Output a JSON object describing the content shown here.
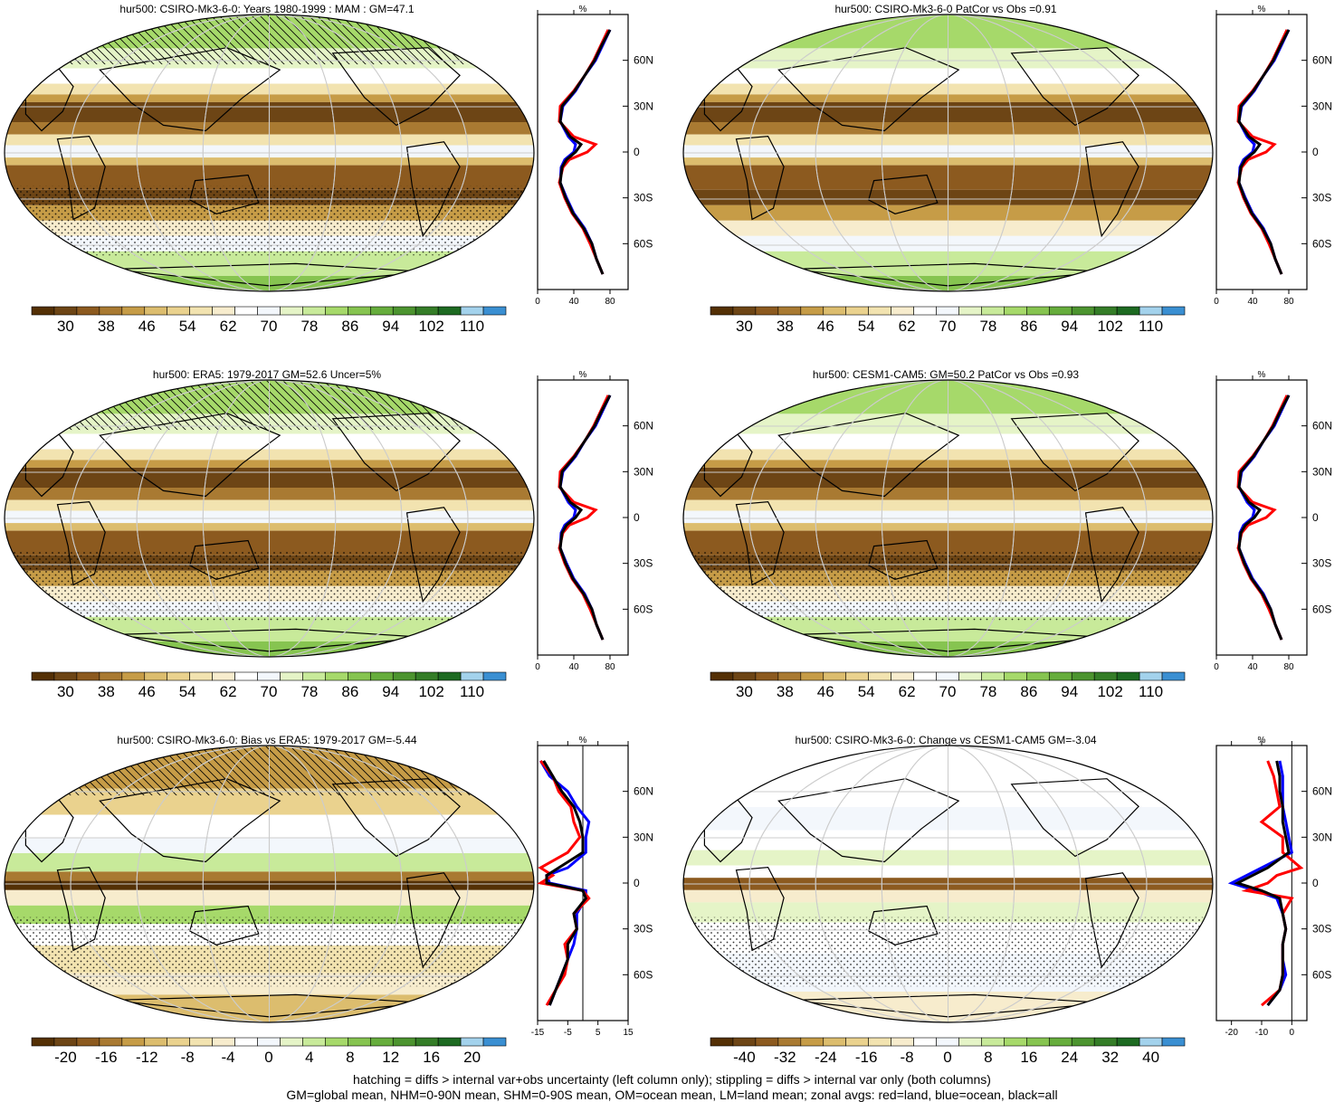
{
  "panels": [
    {
      "title": "hur500: CSIRO-Mk3-6-0: Years 1980-1999 : MAM : GM=47.1",
      "scheme": "abs",
      "hatch": true,
      "stipple": true,
      "profile": {
        "xticks": [
          "0",
          "40",
          "80"
        ],
        "xmin": 0,
        "xmax": 100,
        "unit": "%",
        "zero_line": false
      }
    },
    {
      "title": "hur500: CSIRO-Mk3-6-0 PatCor vs Obs =0.91",
      "scheme": "abs",
      "hatch": false,
      "stipple": false,
      "profile": {
        "xticks": [
          "0",
          "40",
          "80"
        ],
        "xmin": 0,
        "xmax": 100,
        "unit": "%",
        "zero_line": false
      }
    },
    {
      "title": "hur500: ERA5: 1979-2017 GM=52.6 Uncer=5%",
      "scheme": "abs",
      "hatch": true,
      "stipple": true,
      "profile": {
        "xticks": [
          "0",
          "40",
          "80"
        ],
        "xmin": 0,
        "xmax": 100,
        "unit": "%",
        "zero_line": false
      }
    },
    {
      "title": "hur500: CESM1-CAM5: GM=50.2 PatCor vs Obs =0.93",
      "scheme": "abs",
      "hatch": false,
      "stipple": true,
      "profile": {
        "xticks": [
          "0",
          "40",
          "80"
        ],
        "xmin": 0,
        "xmax": 100,
        "unit": "%",
        "zero_line": false
      }
    },
    {
      "title": "hur500: CSIRO-Mk3-6-0: Bias vs ERA5: 1979-2017 GM=-5.44",
      "scheme": "bias",
      "hatch": true,
      "stipple": true,
      "profile": {
        "xticks": [
          "-15",
          "-5",
          "5",
          "15"
        ],
        "xmin": -15,
        "xmax": 15,
        "unit": "%",
        "zero_line": true
      }
    },
    {
      "title": "hur500: CSIRO-Mk3-6-0: Change vs CESM1-CAM5 GM=-3.04",
      "scheme": "change",
      "hatch": false,
      "stipple": true,
      "profile": {
        "xticks": [
          "-20",
          "-10",
          "0"
        ],
        "xmin": -25,
        "xmax": 5,
        "unit": "%",
        "zero_line": true
      }
    }
  ],
  "lat_labels": [
    "60N",
    "30N",
    "0",
    "30S",
    "60S"
  ],
  "colorbars": {
    "abs": {
      "labels": [
        "30",
        "38",
        "46",
        "54",
        "62",
        "70",
        "78",
        "86",
        "94",
        "102",
        "110"
      ],
      "colors": [
        "#543005",
        "#6d4515",
        "#8c5a1f",
        "#a97a32",
        "#c69c47",
        "#dcbd6e",
        "#ead28e",
        "#f2e3b0",
        "#f7eccd",
        "#ffffff",
        "#f3f7fc",
        "#e5f4c7",
        "#c8ea9a",
        "#a6d96a",
        "#86c450",
        "#66ad3c",
        "#4c942f",
        "#347d27",
        "#1d6a21",
        "#a3d2ec",
        "#3a8fd2"
      ]
    },
    "bias": {
      "labels": [
        "-20",
        "-16",
        "-12",
        "-8",
        "-4",
        "0",
        "4",
        "8",
        "12",
        "16",
        "20"
      ],
      "colors": [
        "#543005",
        "#6d4515",
        "#8c5a1f",
        "#a97a32",
        "#c69c47",
        "#dcbd6e",
        "#ead28e",
        "#f2e3b0",
        "#f7eccd",
        "#ffffff",
        "#f3f7fc",
        "#e5f4c7",
        "#c8ea9a",
        "#a6d96a",
        "#86c450",
        "#66ad3c",
        "#4c942f",
        "#347d27",
        "#1d6a21",
        "#a3d2ec",
        "#3a8fd2"
      ]
    },
    "change": {
      "labels": [
        "-40",
        "-32",
        "-24",
        "-16",
        "-8",
        "0",
        "8",
        "16",
        "24",
        "32",
        "40"
      ],
      "colors": [
        "#543005",
        "#6d4515",
        "#8c5a1f",
        "#a97a32",
        "#c69c47",
        "#dcbd6e",
        "#ead28e",
        "#f2e3b0",
        "#f7eccd",
        "#ffffff",
        "#f3f7fc",
        "#e5f4c7",
        "#c8ea9a",
        "#a6d96a",
        "#86c450",
        "#66ad3c",
        "#4c942f",
        "#347d27",
        "#1d6a21",
        "#a3d2ec",
        "#3a8fd2"
      ]
    }
  },
  "zonal_profiles": {
    "lats": [
      80,
      70,
      60,
      50,
      40,
      30,
      20,
      10,
      5,
      0,
      -5,
      -10,
      -20,
      -30,
      -40,
      -50,
      -60,
      -70,
      -80
    ],
    "abs": {
      "land": [
        78,
        70,
        62,
        52,
        40,
        25,
        24,
        40,
        64,
        55,
        35,
        28,
        24,
        30,
        38,
        50,
        58,
        65,
        72
      ],
      "ocean": [
        80,
        72,
        64,
        52,
        42,
        28,
        25,
        34,
        42,
        40,
        30,
        26,
        25,
        32,
        40,
        52,
        60,
        65,
        72
      ],
      "all": [
        80,
        71,
        63,
        52,
        41,
        27,
        25,
        36,
        48,
        42,
        32,
        27,
        25,
        31,
        39,
        51,
        60,
        65,
        72
      ]
    },
    "bias": {
      "land": [
        -14,
        -10,
        -8,
        -4,
        -3,
        -1,
        -5,
        -14,
        -10,
        -14,
        0,
        2,
        -3,
        -2,
        -6,
        -5,
        -6,
        -9,
        -12
      ],
      "ocean": [
        -14,
        -11,
        -5,
        -2,
        2,
        1,
        1,
        -5,
        -12,
        -11,
        1,
        1,
        -2,
        -2,
        -3,
        -5,
        -7,
        -9,
        -11
      ],
      "all": [
        -13,
        -10,
        -7,
        -3,
        -1,
        0,
        0,
        -8,
        -12,
        -12,
        0,
        1,
        -3,
        -2,
        -5,
        -5,
        -7,
        -9,
        -11
      ]
    },
    "change": {
      "land": [
        -8,
        -6,
        -5,
        -4,
        -10,
        -3,
        -3,
        3,
        -5,
        -8,
        -15,
        0,
        -3,
        -2,
        -3,
        -3,
        -3,
        -4,
        -10
      ],
      "ocean": [
        -4,
        -3,
        -3,
        -3,
        -2,
        -1,
        0,
        -10,
        -15,
        -20,
        -12,
        -5,
        -3,
        -2,
        -3,
        -3,
        -2,
        -4,
        -8
      ],
      "all": [
        -5,
        -4,
        -4,
        -3,
        -3,
        -2,
        -1,
        -8,
        -13,
        -18,
        -10,
        -4,
        -3,
        -2,
        -3,
        -3,
        -3,
        -4,
        -8
      ]
    },
    "colors": {
      "land": "#ff0000",
      "ocean": "#0000ff",
      "all": "#000000"
    }
  },
  "footnote": {
    "line1": "hatching = diffs > internal var+obs uncertainty (left column only); stippling = diffs > internal var only (both columns)",
    "line2": "GM=global mean, NHM=0-90N mean, SHM=0-90S mean, OM=ocean mean, LM=land mean; zonal avgs: red=land, blue=ocean, black=all"
  }
}
